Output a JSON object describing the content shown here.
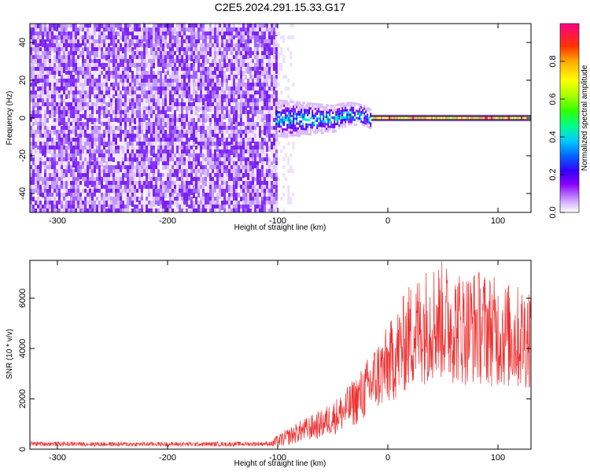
{
  "title": "C2E5.2024.291.15.33.G17",
  "chart_data": [
    {
      "type": "heatmap",
      "name": "spectrogram",
      "xlabel": "Height of straight line (km)",
      "ylabel": "Frequency (Hz)",
      "xlim": [
        -325,
        130
      ],
      "ylim": [
        -50,
        50
      ],
      "xticks": [
        -300,
        -200,
        -100,
        0,
        100
      ],
      "yticks": [
        -40,
        -20,
        0,
        20,
        40
      ],
      "colorbar": {
        "label": "Normalized spectral amplitude",
        "range": [
          0.0,
          1.0
        ],
        "ticks": [
          0.0,
          0.2,
          0.4,
          0.6,
          0.8
        ]
      },
      "regions": [
        {
          "x_range": [
            -325,
            -102
          ],
          "description": "broadband noise",
          "amplitude": 0.05
        },
        {
          "x_range": [
            -102,
            -15
          ],
          "description": "signal onset, frequency spread about 10 Hz",
          "amplitude_peak": 0.45
        },
        {
          "x_range": [
            -15,
            130
          ],
          "description": "narrow tone near 0 Hz",
          "amplitude_peak": 0.9
        }
      ]
    },
    {
      "type": "line",
      "name": "snr",
      "xlabel": "Height of straight line (km)",
      "ylabel": "SNR (10 * v/v)",
      "xlim": [
        -325,
        130
      ],
      "ylim": [
        0,
        7500
      ],
      "xticks": [
        -300,
        -200,
        -100,
        0,
        100
      ],
      "yticks": [
        0,
        2000,
        4000,
        6000
      ],
      "color": "#ee3030",
      "x": [
        -325,
        -250,
        -150,
        -105,
        -95,
        -80,
        -60,
        -40,
        -25,
        -15,
        -10,
        0,
        10,
        20,
        30,
        40,
        50,
        60,
        70,
        80,
        90,
        100,
        110,
        120,
        130
      ],
      "y": [
        220,
        200,
        200,
        220,
        400,
        700,
        1000,
        1500,
        2100,
        2600,
        2900,
        3300,
        3900,
        4500,
        4800,
        5100,
        5100,
        4900,
        4800,
        4900,
        4800,
        4600,
        4500,
        4400,
        4600
      ]
    }
  ]
}
